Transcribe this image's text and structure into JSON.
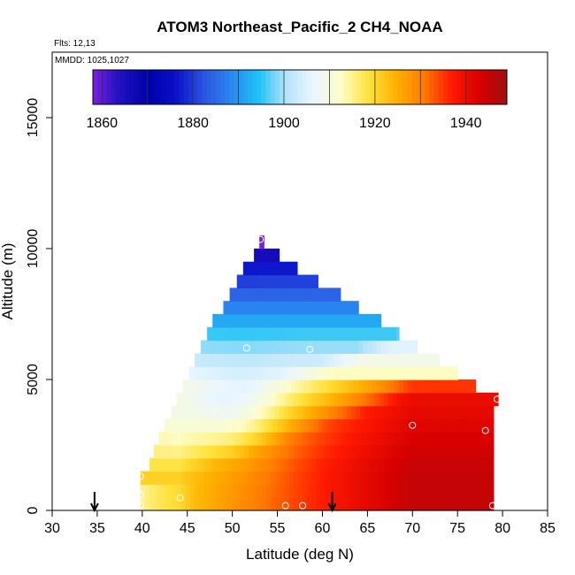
{
  "chart_data": {
    "type": "heatmap",
    "title": "ATOM3 Northeast_Pacific_2 CH4_NOAA",
    "flights_label": "Flts: 12,13",
    "mmdd_label": "MMDD: 1025,1027",
    "xlabel": "Latitude (deg N)",
    "ylabel": "Altitude (m)",
    "xlim": [
      30,
      85
    ],
    "ylim": [
      0,
      17500
    ],
    "xticks": [
      "30",
      "35",
      "40",
      "45",
      "50",
      "55",
      "60",
      "65",
      "70",
      "75",
      "80",
      "85"
    ],
    "yticks": [
      "0",
      "5000",
      "10000",
      "15000"
    ],
    "colorbar": {
      "range": [
        1858,
        1949
      ],
      "ticks": [
        "1860",
        "1880",
        "1900",
        "1920",
        "1940"
      ],
      "colors": [
        "#7a1fe0",
        "#1d10c0",
        "#0000aa",
        "#0a10c8",
        "#2b52e0",
        "#2a86f0",
        "#1ec2f5",
        "#b4e4fa",
        "#eaf6ff",
        "#fdfdc8",
        "#ffe23a",
        "#ffb000",
        "#ff7a00",
        "#ff1a00",
        "#d80000",
        "#a01010"
      ]
    },
    "profile_lat_arrows": [
      34.7,
      61.1
    ],
    "sample_points": [
      {
        "lat": 39.8,
        "alt": 1300
      },
      {
        "lat": 39.8,
        "alt": 600
      },
      {
        "lat": 39.8,
        "alt": 180
      },
      {
        "lat": 44.2,
        "alt": 480
      },
      {
        "lat": 51.6,
        "alt": 6200
      },
      {
        "lat": 53.1,
        "alt": 10350
      },
      {
        "lat": 55.9,
        "alt": 180
      },
      {
        "lat": 57.8,
        "alt": 180
      },
      {
        "lat": 58.6,
        "alt": 6150
      },
      {
        "lat": 70.0,
        "alt": 3250
      },
      {
        "lat": 78.1,
        "alt": 3050
      },
      {
        "lat": 78.9,
        "alt": 180
      },
      {
        "lat": 79.4,
        "alt": 4250
      }
    ],
    "grid_spec": {
      "lat_step": 0.5,
      "alt_step": 500,
      "rows": [
        {
          "alt": 250,
          "lat_min": 39.8,
          "lat_max": 79.0
        },
        {
          "alt": 750,
          "lat_min": 39.8,
          "lat_max": 79.0
        },
        {
          "alt": 1250,
          "lat_min": 39.8,
          "lat_max": 79.0
        },
        {
          "alt": 1750,
          "lat_min": 40.8,
          "lat_max": 79.0
        },
        {
          "alt": 2250,
          "lat_min": 41.3,
          "lat_max": 79.0
        },
        {
          "alt": 2750,
          "lat_min": 41.8,
          "lat_max": 79.0
        },
        {
          "alt": 3250,
          "lat_min": 42.5,
          "lat_max": 79.0
        },
        {
          "alt": 3750,
          "lat_min": 43.2,
          "lat_max": 79.0
        },
        {
          "alt": 4250,
          "lat_min": 43.8,
          "lat_max": 79.5
        },
        {
          "alt": 4750,
          "lat_min": 44.5,
          "lat_max": 77.0
        },
        {
          "alt": 5250,
          "lat_min": 45.2,
          "lat_max": 75.0
        },
        {
          "alt": 5750,
          "lat_min": 45.8,
          "lat_max": 73.0
        },
        {
          "alt": 6250,
          "lat_min": 46.5,
          "lat_max": 70.5
        },
        {
          "alt": 6750,
          "lat_min": 47.2,
          "lat_max": 68.5
        },
        {
          "alt": 7250,
          "lat_min": 47.8,
          "lat_max": 66.5
        },
        {
          "alt": 7750,
          "lat_min": 49.0,
          "lat_max": 64.0
        },
        {
          "alt": 8250,
          "lat_min": 49.7,
          "lat_max": 62.0
        },
        {
          "alt": 8750,
          "lat_min": 50.5,
          "lat_max": 59.5
        },
        {
          "alt": 9250,
          "lat_min": 51.2,
          "lat_max": 57.2
        },
        {
          "alt": 9750,
          "lat_min": 52.4,
          "lat_max": 55.2
        },
        {
          "alt": 10250,
          "lat_min": 53.0,
          "lat_max": 53.5
        }
      ]
    }
  }
}
